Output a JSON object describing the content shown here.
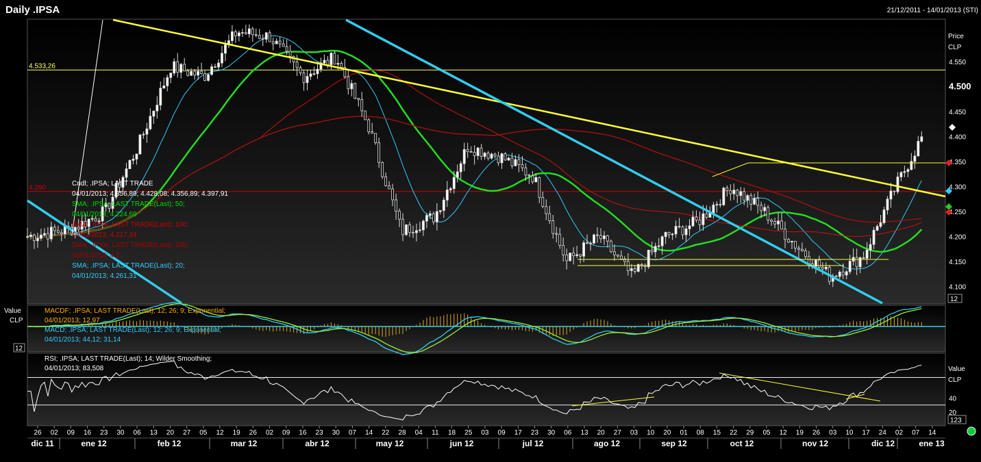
{
  "header": {
    "title": "Daily .IPSA",
    "date_range": "21/12/2011 - 14/01/2013 (STI)"
  },
  "chart_data": [
    {
      "type": "candlestick",
      "title": "Daily .IPSA",
      "ylabel": "Price",
      "yunit": "CLP",
      "ylim": [
        4065,
        4635
      ],
      "y_ticks": [
        4100,
        4150,
        4200,
        4250,
        4300,
        4350,
        4400,
        4450,
        4500,
        4550
      ],
      "y_tick_labels": [
        "4.100",
        "4.150",
        "4.200",
        "4.250",
        "4.300",
        "4.350",
        "4.400",
        "4.450",
        "4.500",
        "4.550"
      ],
      "y_tick_bold": "4.500",
      "horizontal_lines": [
        {
          "value": 4533.26,
          "label": "4.533,26",
          "color": "#ffff66"
        },
        {
          "value": 4290,
          "label": "4.290",
          "color": "#cc0000"
        }
      ],
      "close_series_approx": [
        {
          "date": "2011-12-21",
          "close": 4200
        },
        {
          "date": "2012-01-09",
          "close": 4215
        },
        {
          "date": "2012-01-23",
          "close": 4250
        },
        {
          "date": "2012-02-06",
          "close": 4380
        },
        {
          "date": "2012-02-20",
          "close": 4540
        },
        {
          "date": "2012-03-05",
          "close": 4520
        },
        {
          "date": "2012-03-19",
          "close": 4610
        },
        {
          "date": "2012-04-02",
          "close": 4600
        },
        {
          "date": "2012-04-16",
          "close": 4520
        },
        {
          "date": "2012-04-30",
          "close": 4560
        },
        {
          "date": "2012-05-14",
          "close": 4420
        },
        {
          "date": "2012-05-28",
          "close": 4210
        },
        {
          "date": "2012-06-11",
          "close": 4240
        },
        {
          "date": "2012-06-25",
          "close": 4380
        },
        {
          "date": "2012-07-09",
          "close": 4360
        },
        {
          "date": "2012-07-23",
          "close": 4320
        },
        {
          "date": "2012-08-06",
          "close": 4150
        },
        {
          "date": "2012-08-20",
          "close": 4200
        },
        {
          "date": "2012-09-03",
          "close": 4120
        },
        {
          "date": "2012-09-17",
          "close": 4200
        },
        {
          "date": "2012-10-01",
          "close": 4230
        },
        {
          "date": "2012-10-15",
          "close": 4300
        },
        {
          "date": "2012-10-29",
          "close": 4250
        },
        {
          "date": "2012-11-12",
          "close": 4180
        },
        {
          "date": "2012-11-26",
          "close": 4120
        },
        {
          "date": "2012-12-10",
          "close": 4160
        },
        {
          "date": "2012-12-24",
          "close": 4300
        },
        {
          "date": "2013-01-04",
          "close": 4398
        }
      ],
      "legend": [
        {
          "name": "Cndl; .IPSA; LAST TRADE",
          "value": "04/01/2013; 4.356,89; 4.428,08; 4.356,89; 4.397,91",
          "color": "#ffffff"
        },
        {
          "name": "SMA; .IPSA; LAST TRADE(Last); 50;",
          "value": "04/01/2013; 4.224,69",
          "color": "#00dd00"
        },
        {
          "name": "SMA; .IPSA; LAST TRADE(Last); 100;",
          "value": "04/01/2013; 4.217,34",
          "color": "#cc0000"
        },
        {
          "name": "SMA; .IPSA; LAST TRADE(Last); 200;",
          "value": "04/01/2013; 4.2..",
          "color": "#aa0000"
        },
        {
          "name": "SMA; .IPSA; LAST TRADE(Last); 20;",
          "value": "04/01/2013; 4.261,31",
          "color": "#33ccff"
        }
      ],
      "scale_label": "12"
    },
    {
      "type": "line",
      "title": "MACD",
      "ylabel": "Value",
      "yunit": "CLP",
      "legend": [
        {
          "name": "MACDF; .IPSA; LAST TRADE(Last); 12; 26; 9; Exponential;",
          "value": "04/01/2013; 12,97",
          "color": "#ffaa00"
        },
        {
          "name": "MACD; .IPSA; LAST TRADE(Last); 12; 26; 9; Exponential;",
          "value": "04/01/2013; 44,12; 31,14",
          "color": "#33ccff"
        }
      ],
      "scale_label": "12"
    },
    {
      "type": "line",
      "title": "RSI",
      "ylabel": "Value",
      "yunit": "CLP",
      "ylim": [
        0,
        100
      ],
      "y_ticks": [
        20,
        40
      ],
      "y_tick_labels": [
        "20",
        "40"
      ],
      "horizontal_lines": [
        70,
        30
      ],
      "legend": [
        {
          "name": "RSI; .IPSA; LAST TRADE(Last); 14; Wilder Smoothing;",
          "value": "04/01/2013; 83,508",
          "color": "#ffffff"
        }
      ],
      "scale_label": "123"
    }
  ],
  "x_axis": {
    "day_ticks": [
      "26",
      "02",
      "09",
      "16",
      "23",
      "30",
      "06",
      "13",
      "20",
      "27",
      "05",
      "12",
      "19",
      "26",
      "02",
      "09",
      "16",
      "23",
      "30",
      "07",
      "14",
      "22",
      "28",
      "04",
      "11",
      "18",
      "25",
      "03",
      "09",
      "17",
      "23",
      "30",
      "06",
      "13",
      "20",
      "27",
      "03",
      "10",
      "20",
      "01",
      "08",
      "15",
      "22",
      "29",
      "05",
      "12",
      "19",
      "26",
      "03",
      "10",
      "17",
      "24",
      "02",
      "07",
      "14"
    ],
    "month_labels": [
      "dic 11",
      "ene 12",
      "feb 12",
      "mar 12",
      "abr 12",
      "may 12",
      "jun 12",
      "jul 12",
      "ago 12",
      "sep 12",
      "oct 12",
      "nov 12",
      "dic 12",
      "ene 13"
    ]
  }
}
